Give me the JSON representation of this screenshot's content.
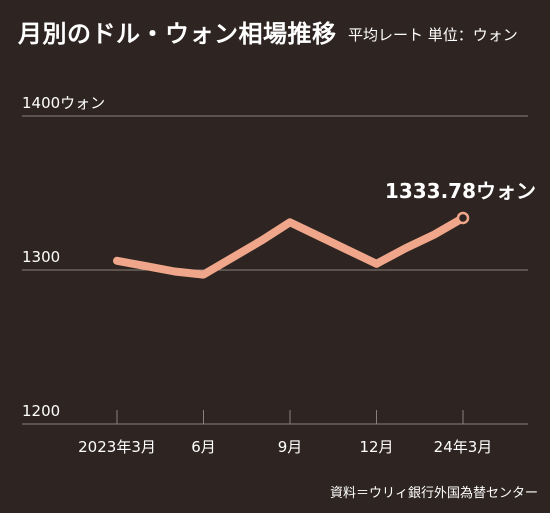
{
  "title": "月別のドル・ウォン相場推移",
  "subtitle": "平均レート 単位：ウォン",
  "source": "資料＝ウリィ銀行外国為替センター",
  "colors": {
    "background": "#2e2522",
    "line": "#f0a68a",
    "grid": "#8a7f79",
    "text": "#ffffff"
  },
  "chart_data": {
    "type": "line",
    "title": "月別のドル・ウォン相場推移",
    "subtitle": "平均レート 単位：ウォン",
    "x": [
      "2023-03",
      "2023-04",
      "2023-05",
      "2023-06",
      "2023-07",
      "2023-08",
      "2023-09",
      "2023-10",
      "2023-11",
      "2023-12",
      "2024-01",
      "2024-02",
      "2024-03"
    ],
    "xtick_labels": [
      "2023年3月",
      "6月",
      "9月",
      "12月",
      "24年3月"
    ],
    "xtick_positions": [
      "2023-03",
      "2023-06",
      "2023-09",
      "2023-12",
      "2024-03"
    ],
    "ytick_labels": [
      "1400ウォン",
      "1300",
      "1200"
    ],
    "ytick_values": [
      1400,
      1300,
      1200
    ],
    "ylim": [
      1200,
      1400
    ],
    "series": [
      {
        "values": [
          1306,
          1302.5,
          1299,
          1297,
          1308,
          1319,
          1331,
          1322,
          1313,
          1304,
          1314,
          1323,
          1333.78
        ]
      }
    ],
    "annotation": {
      "text": "1333.78ウォン",
      "x": "2024-03",
      "value": 1333.78
    },
    "grid": true
  }
}
